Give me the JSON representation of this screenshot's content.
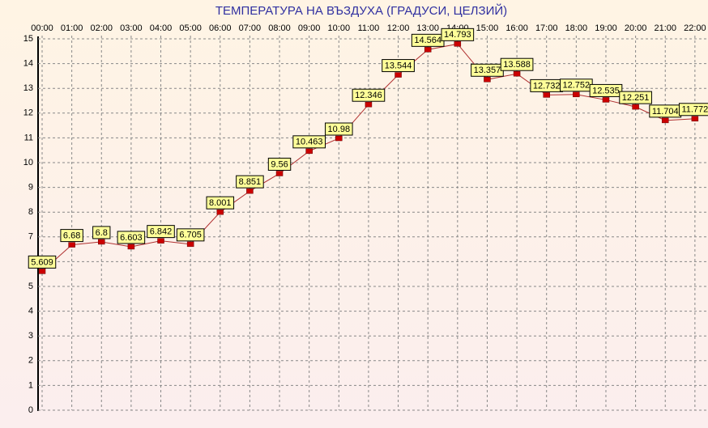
{
  "chart_data": {
    "type": "line",
    "title": "ТЕМПЕРАТУРА НА ВЪЗДУХА  (ГРАДУСИ, ЦЕЛЗИЙ)",
    "categories": [
      "00:00",
      "01:00",
      "02:00",
      "03:00",
      "04:00",
      "05:00",
      "06:00",
      "07:00",
      "08:00",
      "09:00",
      "10:00",
      "11:00",
      "12:00",
      "13:00",
      "14:00",
      "15:00",
      "16:00",
      "17:00",
      "18:00",
      "19:00",
      "20:00",
      "21:00",
      "22:00"
    ],
    "values": [
      5.609,
      6.68,
      6.8,
      6.603,
      6.842,
      6.705,
      8.001,
      8.851,
      9.56,
      10.463,
      10.98,
      12.346,
      13.544,
      14.564,
      14.793,
      13.357,
      13.588,
      12.732,
      12.752,
      12.535,
      12.251,
      11.704,
      11.772
    ],
    "color": "#b03030",
    "ylim": [
      0,
      15
    ],
    "yticks": [
      0,
      1,
      2,
      3,
      4,
      5,
      6,
      7,
      8,
      9,
      10,
      11,
      12,
      13,
      14,
      15
    ],
    "grid": true
  }
}
